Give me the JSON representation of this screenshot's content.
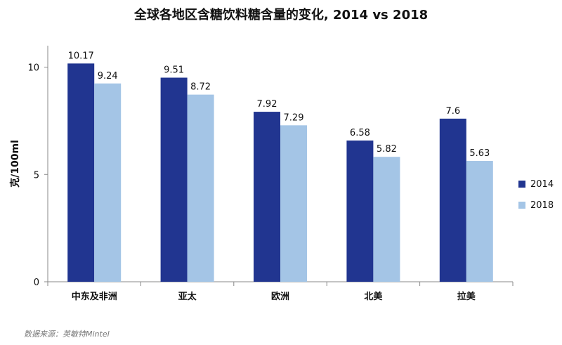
{
  "chart_data": {
    "type": "bar",
    "title": "全球各地区含糖饮料糖含量的变化, 2014 vs 2018",
    "xlabel": "",
    "ylabel": "克/100ml",
    "ylim": [
      0,
      11
    ],
    "yticks": [
      0,
      5,
      10
    ],
    "grid": false,
    "legend_position": "right",
    "categories": [
      "中东及非洲",
      "亚太",
      "欧洲",
      "北美",
      "拉美"
    ],
    "series": [
      {
        "name": "2014",
        "color": "#213590",
        "values": [
          10.17,
          9.51,
          7.92,
          6.58,
          7.6
        ],
        "labels": [
          "10.17",
          "9.51",
          "7.92",
          "6.58",
          "7.6"
        ]
      },
      {
        "name": "2018",
        "color": "#a4c5e6",
        "values": [
          9.24,
          8.72,
          7.29,
          5.82,
          5.63
        ],
        "labels": [
          "9.24",
          "8.72",
          "7.29",
          "5.82",
          "5.63"
        ]
      }
    ]
  },
  "source_note": "数据来源：英敏特Mintel"
}
